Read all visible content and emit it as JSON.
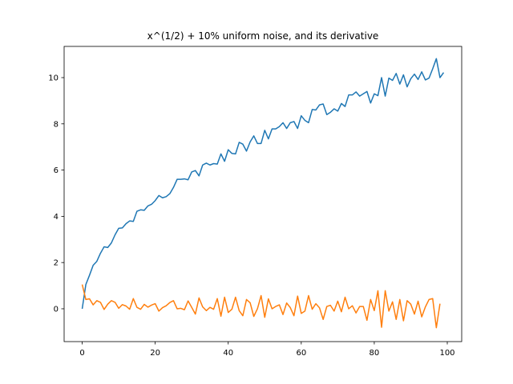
{
  "chart_data": {
    "type": "line",
    "title": "x^(1/2) + 10% uniform noise, and its derivative",
    "xlabel": "",
    "ylabel": "",
    "xlim": [
      -4.95,
      103.95
    ],
    "ylim": [
      -1.42,
      11.35
    ],
    "xticks": [
      0,
      20,
      40,
      60,
      80,
      100
    ],
    "yticks": [
      0,
      2,
      4,
      6,
      8,
      10
    ],
    "grid": false,
    "series": [
      {
        "color": "#1f77b4",
        "x": [
          0,
          1,
          2,
          3,
          4,
          5,
          6,
          7,
          8,
          9,
          10,
          11,
          12,
          13,
          14,
          15,
          16,
          17,
          18,
          19,
          20,
          21,
          22,
          23,
          24,
          25,
          26,
          27,
          28,
          29,
          30,
          31,
          32,
          33,
          34,
          35,
          36,
          37,
          38,
          39,
          40,
          41,
          42,
          43,
          44,
          45,
          46,
          47,
          48,
          49,
          50,
          51,
          52,
          53,
          54,
          55,
          56,
          57,
          58,
          59,
          60,
          61,
          62,
          63,
          64,
          65,
          66,
          67,
          68,
          69,
          70,
          71,
          72,
          73,
          74,
          75,
          76,
          77,
          78,
          79,
          80,
          81,
          82,
          83,
          84,
          85,
          86,
          87,
          88,
          89,
          90,
          91,
          92,
          93,
          94,
          95,
          96,
          97,
          98,
          99
        ],
        "values": [
          0.0,
          1.05,
          1.45,
          1.88,
          2.05,
          2.4,
          2.68,
          2.65,
          2.85,
          3.2,
          3.48,
          3.5,
          3.68,
          3.8,
          3.78,
          4.22,
          4.28,
          4.26,
          4.45,
          4.52,
          4.68,
          4.9,
          4.8,
          4.85,
          4.98,
          5.25,
          5.6,
          5.6,
          5.62,
          5.58,
          5.92,
          5.98,
          5.75,
          6.22,
          6.3,
          6.22,
          6.28,
          6.26,
          6.7,
          6.38,
          6.88,
          6.72,
          6.7,
          7.2,
          7.12,
          6.82,
          7.22,
          7.48,
          7.15,
          7.15,
          7.72,
          7.35,
          7.78,
          7.78,
          7.88,
          8.05,
          7.8,
          8.05,
          8.1,
          7.8,
          8.35,
          8.15,
          8.05,
          8.62,
          8.6,
          8.82,
          8.86,
          8.4,
          8.5,
          8.65,
          8.55,
          8.88,
          8.75,
          9.25,
          9.25,
          9.38,
          9.2,
          9.3,
          9.4,
          8.9,
          9.3,
          9.22,
          10.0,
          9.2,
          9.98,
          9.88,
          10.18,
          9.72,
          10.12,
          9.6,
          9.95,
          10.15,
          9.92,
          10.25,
          9.9,
          9.98,
          10.38,
          10.82,
          10.0,
          10.22
        ]
      },
      {
        "color": "#ff7f0e",
        "x": [
          0,
          1,
          2,
          3,
          4,
          5,
          6,
          7,
          8,
          9,
          10,
          11,
          12,
          13,
          14,
          15,
          16,
          17,
          18,
          19,
          20,
          21,
          22,
          23,
          24,
          25,
          26,
          27,
          28,
          29,
          30,
          31,
          32,
          33,
          34,
          35,
          36,
          37,
          38,
          39,
          40,
          41,
          42,
          43,
          44,
          45,
          46,
          47,
          48,
          49,
          50,
          51,
          52,
          53,
          54,
          55,
          56,
          57,
          58,
          59,
          60,
          61,
          62,
          63,
          64,
          65,
          66,
          67,
          68,
          69,
          70,
          71,
          72,
          73,
          74,
          75,
          76,
          77,
          78,
          79,
          80,
          81,
          82,
          83,
          84,
          85,
          86,
          87,
          88,
          89,
          90,
          91,
          92,
          93,
          94,
          95,
          96,
          97,
          98
        ],
        "values": [
          1.05,
          0.4,
          0.43,
          0.17,
          0.35,
          0.28,
          -0.03,
          0.2,
          0.35,
          0.28,
          0.02,
          0.18,
          0.12,
          -0.02,
          0.44,
          0.06,
          -0.02,
          0.19,
          0.07,
          0.16,
          0.22,
          -0.1,
          0.05,
          0.13,
          0.27,
          0.35,
          0.0,
          0.02,
          -0.04,
          0.34,
          0.06,
          -0.23,
          0.47,
          0.08,
          -0.08,
          0.06,
          -0.02,
          0.44,
          -0.32,
          0.5,
          -0.16,
          -0.02,
          0.5,
          -0.08,
          -0.3,
          0.4,
          0.26,
          -0.33,
          0.0,
          0.57,
          -0.37,
          0.43,
          0.0,
          0.1,
          0.17,
          -0.25,
          0.25,
          0.05,
          -0.3,
          0.55,
          -0.2,
          -0.1,
          0.57,
          -0.02,
          0.22,
          0.04,
          -0.46,
          0.1,
          0.15,
          -0.1,
          0.33,
          -0.13,
          0.5,
          0.0,
          0.13,
          -0.18,
          0.1,
          0.1,
          -0.5,
          0.4,
          -0.08,
          0.78,
          -0.8,
          0.78,
          -0.1,
          0.3,
          -0.46,
          0.4,
          -0.52,
          0.35,
          0.2,
          -0.23,
          0.33,
          -0.35,
          0.08,
          0.4,
          0.44,
          -0.82,
          0.22
        ]
      }
    ]
  }
}
